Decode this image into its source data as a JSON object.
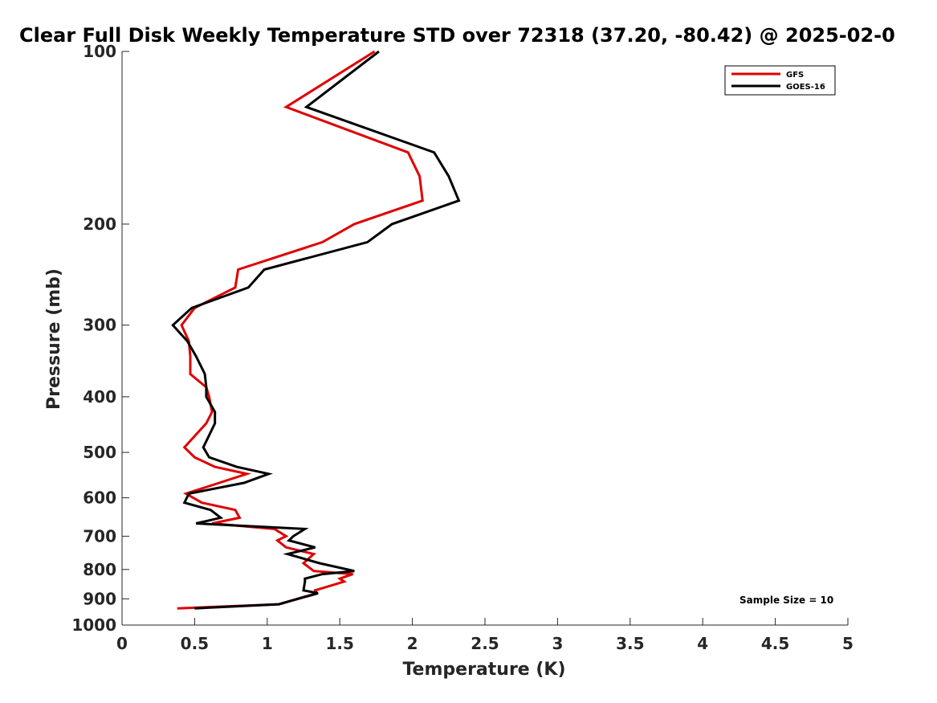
{
  "chart_data": {
    "type": "line",
    "title": "Clear Full Disk Weekly Temperature STD over 72318 (37.20, -80.42) @ 2025-02-0",
    "xlabel": "Temperature (K)",
    "ylabel": "Pressure (mb)",
    "xlim": [
      0,
      5
    ],
    "ylim": [
      100,
      1000
    ],
    "yscale": "log",
    "y_reversed": true,
    "xticks": [
      "0",
      "0.5",
      "1",
      "1.5",
      "2",
      "2.5",
      "3",
      "3.5",
      "4",
      "4.5",
      "5"
    ],
    "yticks": [
      "100",
      "200",
      "300",
      "400",
      "500",
      "600",
      "700",
      "800",
      "900",
      "1000"
    ],
    "legend_position": "top-right",
    "annotation": "Sample Size = 10",
    "grid": false,
    "series": [
      {
        "name": "GFS",
        "color": "#e00000",
        "points": [
          [
            1.74,
            100
          ],
          [
            1.13,
            125
          ],
          [
            1.97,
            150
          ],
          [
            2.05,
            165
          ],
          [
            2.07,
            182
          ],
          [
            1.6,
            200
          ],
          [
            1.38,
            215
          ],
          [
            0.8,
            240
          ],
          [
            0.78,
            258
          ],
          [
            0.5,
            280
          ],
          [
            0.41,
            300
          ],
          [
            0.46,
            320
          ],
          [
            0.47,
            340
          ],
          [
            0.47,
            365
          ],
          [
            0.58,
            385
          ],
          [
            0.6,
            400
          ],
          [
            0.62,
            425
          ],
          [
            0.58,
            445
          ],
          [
            0.43,
            490
          ],
          [
            0.5,
            510
          ],
          [
            0.64,
            530
          ],
          [
            0.86,
            545
          ],
          [
            0.67,
            565
          ],
          [
            0.44,
            590
          ],
          [
            0.55,
            612
          ],
          [
            0.78,
            630
          ],
          [
            0.81,
            650
          ],
          [
            0.62,
            665
          ],
          [
            1.05,
            680
          ],
          [
            1.13,
            700
          ],
          [
            1.07,
            712
          ],
          [
            1.13,
            732
          ],
          [
            1.32,
            752
          ],
          [
            1.25,
            780
          ],
          [
            1.32,
            805
          ],
          [
            1.59,
            815
          ],
          [
            1.5,
            830
          ],
          [
            1.53,
            840
          ],
          [
            1.33,
            870
          ],
          [
            1.34,
            880
          ],
          [
            1.08,
            920
          ],
          [
            0.38,
            935
          ]
        ]
      },
      {
        "name": "GOES-16",
        "color": "#000000",
        "points": [
          [
            1.77,
            100
          ],
          [
            1.27,
            125
          ],
          [
            2.15,
            150
          ],
          [
            2.25,
            165
          ],
          [
            2.32,
            182
          ],
          [
            1.86,
            200
          ],
          [
            1.69,
            215
          ],
          [
            0.98,
            240
          ],
          [
            0.87,
            258
          ],
          [
            0.48,
            280
          ],
          [
            0.35,
            300
          ],
          [
            0.45,
            320
          ],
          [
            0.51,
            340
          ],
          [
            0.57,
            365
          ],
          [
            0.58,
            385
          ],
          [
            0.58,
            400
          ],
          [
            0.64,
            425
          ],
          [
            0.64,
            445
          ],
          [
            0.56,
            490
          ],
          [
            0.6,
            510
          ],
          [
            0.79,
            530
          ],
          [
            1.01,
            545
          ],
          [
            0.84,
            565
          ],
          [
            0.46,
            590
          ],
          [
            0.43,
            612
          ],
          [
            0.61,
            630
          ],
          [
            0.68,
            650
          ],
          [
            0.51,
            665
          ],
          [
            1.26,
            680
          ],
          [
            1.18,
            700
          ],
          [
            1.15,
            712
          ],
          [
            1.33,
            732
          ],
          [
            1.14,
            752
          ],
          [
            1.36,
            780
          ],
          [
            1.6,
            805
          ],
          [
            1.38,
            815
          ],
          [
            1.26,
            830
          ],
          [
            1.26,
            840
          ],
          [
            1.25,
            870
          ],
          [
            1.35,
            880
          ],
          [
            1.08,
            920
          ],
          [
            0.5,
            935
          ]
        ]
      }
    ]
  }
}
